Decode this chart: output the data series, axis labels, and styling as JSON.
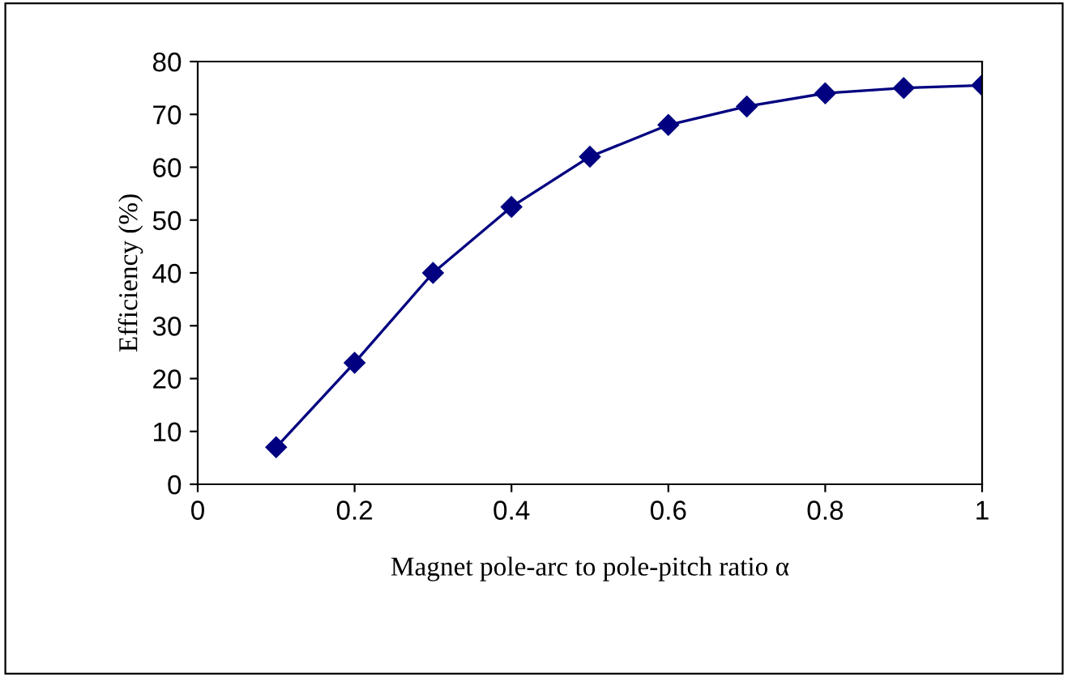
{
  "chart_data": {
    "type": "line",
    "xlabel": "Magnet pole-arc to pole-pitch ratio α",
    "ylabel": "Efficiency (%)",
    "x": [
      0.1,
      0.2,
      0.3,
      0.4,
      0.5,
      0.6,
      0.7,
      0.8,
      0.9,
      1.0
    ],
    "series": [
      {
        "color": "#000080",
        "values": [
          7,
          23,
          40,
          52.5,
          62,
          68,
          71.5,
          74,
          75,
          75.5
        ]
      }
    ],
    "marker": "diamond",
    "line_style": "solid",
    "xlim": [
      0,
      1
    ],
    "ylim": [
      0,
      80
    ],
    "xticks": [
      0,
      0.2,
      0.4,
      0.6,
      0.8,
      1
    ],
    "yticks": [
      0,
      10,
      20,
      30,
      40,
      50,
      60,
      70,
      80
    ],
    "grid": false,
    "legend": false
  }
}
